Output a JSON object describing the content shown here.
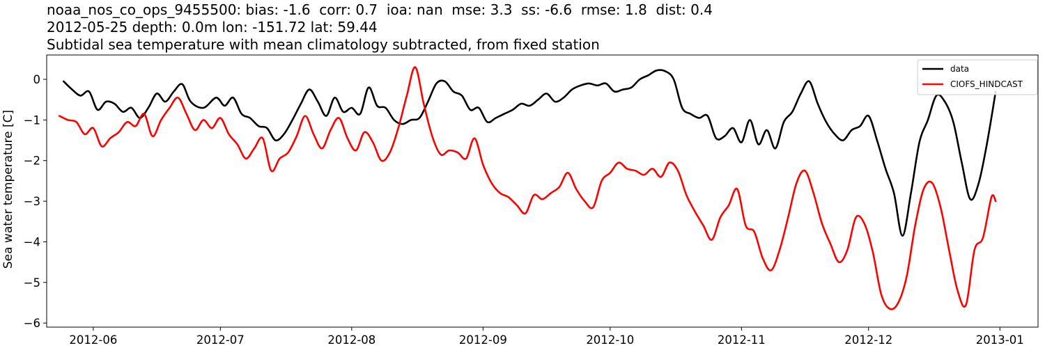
{
  "chart_data": {
    "type": "line",
    "title_lines": [
      "noaa_nos_co_ops_9455500: bias: -1.6  corr: 0.7  ioa: nan  mse: 3.3  ss: -6.6  rmse: 1.8  dist: 0.4",
      "2012-05-25 depth: 0.0m lon: -151.72 lat: 59.44",
      "Subtidal sea temperature with mean climatology subtracted, from fixed station"
    ],
    "ylabel": "Sea water temperature [C]",
    "xlabel": "",
    "xlim": [
      "2012-05-21",
      "2013-01-10"
    ],
    "ylim": [
      -6.1,
      0.6
    ],
    "x_ticks": [
      "2012-06-01",
      "2012-07-01",
      "2012-08-01",
      "2012-09-01",
      "2012-10-01",
      "2012-11-01",
      "2012-12-01",
      "2013-01-01"
    ],
    "x_tick_labels": [
      "2012-06",
      "2012-07",
      "2012-08",
      "2012-09",
      "2012-10",
      "2012-11",
      "2012-12",
      "2013-01"
    ],
    "y_ticks": [
      0,
      -1,
      -2,
      -3,
      -4,
      -5,
      -6
    ],
    "y_tick_labels": [
      "0",
      "−1",
      "−2",
      "−3",
      "−4",
      "−5",
      "−6"
    ],
    "grid": false,
    "legend_position": "top-right",
    "series": [
      {
        "name": "data",
        "color": "#000000",
        "points": [
          [
            "2012-05-25",
            -0.05
          ],
          [
            "2012-05-27",
            -0.25
          ],
          [
            "2012-05-29",
            -0.4
          ],
          [
            "2012-05-31",
            -0.3
          ],
          [
            "2012-06-02",
            -0.75
          ],
          [
            "2012-06-04",
            -0.55
          ],
          [
            "2012-06-06",
            -0.6
          ],
          [
            "2012-06-08",
            -0.8
          ],
          [
            "2012-06-10",
            -0.7
          ],
          [
            "2012-06-12",
            -0.95
          ],
          [
            "2012-06-14",
            -0.7
          ],
          [
            "2012-06-16",
            -0.35
          ],
          [
            "2012-06-18",
            -0.55
          ],
          [
            "2012-06-20",
            -0.3
          ],
          [
            "2012-06-22",
            -0.12
          ],
          [
            "2012-06-24",
            -0.55
          ],
          [
            "2012-06-27",
            -0.7
          ],
          [
            "2012-06-30",
            -0.45
          ],
          [
            "2012-07-02",
            -0.65
          ],
          [
            "2012-07-04",
            -0.45
          ],
          [
            "2012-07-06",
            -0.85
          ],
          [
            "2012-07-08",
            -0.95
          ],
          [
            "2012-07-10",
            -1.15
          ],
          [
            "2012-07-12",
            -1.2
          ],
          [
            "2012-07-14",
            -1.5
          ],
          [
            "2012-07-16",
            -1.35
          ],
          [
            "2012-07-18",
            -1.0
          ],
          [
            "2012-07-20",
            -0.6
          ],
          [
            "2012-07-22",
            -0.25
          ],
          [
            "2012-07-24",
            -0.55
          ],
          [
            "2012-07-26",
            -0.9
          ],
          [
            "2012-07-28",
            -0.45
          ],
          [
            "2012-07-30",
            -0.8
          ],
          [
            "2012-08-01",
            -0.7
          ],
          [
            "2012-08-03",
            -0.85
          ],
          [
            "2012-08-05",
            -0.2
          ],
          [
            "2012-08-07",
            -0.65
          ],
          [
            "2012-08-09",
            -0.7
          ],
          [
            "2012-08-11",
            -1.0
          ],
          [
            "2012-08-13",
            -1.1
          ],
          [
            "2012-08-15",
            -1.0
          ],
          [
            "2012-08-17",
            -0.95
          ],
          [
            "2012-08-19",
            -0.55
          ],
          [
            "2012-08-21",
            -0.1
          ],
          [
            "2012-08-23",
            -0.05
          ],
          [
            "2012-08-25",
            -0.3
          ],
          [
            "2012-08-27",
            -0.4
          ],
          [
            "2012-08-29",
            -0.75
          ],
          [
            "2012-08-31",
            -0.7
          ],
          [
            "2012-09-02",
            -1.05
          ],
          [
            "2012-09-04",
            -0.95
          ],
          [
            "2012-09-06",
            -0.85
          ],
          [
            "2012-09-08",
            -0.75
          ],
          [
            "2012-09-10",
            -0.6
          ],
          [
            "2012-09-12",
            -0.65
          ],
          [
            "2012-09-14",
            -0.5
          ],
          [
            "2012-09-16",
            -0.35
          ],
          [
            "2012-09-18",
            -0.55
          ],
          [
            "2012-09-20",
            -0.45
          ],
          [
            "2012-09-22",
            -0.25
          ],
          [
            "2012-09-24",
            -0.15
          ],
          [
            "2012-09-26",
            -0.1
          ],
          [
            "2012-09-28",
            -0.15
          ],
          [
            "2012-09-30",
            -0.1
          ],
          [
            "2012-10-02",
            -0.3
          ],
          [
            "2012-10-04",
            -0.25
          ],
          [
            "2012-10-06",
            -0.2
          ],
          [
            "2012-10-08",
            0.0
          ],
          [
            "2012-10-10",
            0.1
          ],
          [
            "2012-10-12",
            0.22
          ],
          [
            "2012-10-14",
            0.2
          ],
          [
            "2012-10-16",
            0.0
          ],
          [
            "2012-10-18",
            -0.7
          ],
          [
            "2012-10-20",
            -0.85
          ],
          [
            "2012-10-22",
            -0.95
          ],
          [
            "2012-10-24",
            -0.9
          ],
          [
            "2012-10-26",
            -1.45
          ],
          [
            "2012-10-28",
            -1.4
          ],
          [
            "2012-10-30",
            -1.2
          ],
          [
            "2012-11-01",
            -1.55
          ],
          [
            "2012-11-03",
            -1.0
          ],
          [
            "2012-11-05",
            -1.6
          ],
          [
            "2012-11-07",
            -1.25
          ],
          [
            "2012-11-09",
            -1.7
          ],
          [
            "2012-11-11",
            -1.05
          ],
          [
            "2012-11-13",
            -0.8
          ],
          [
            "2012-11-15",
            -0.35
          ],
          [
            "2012-11-17",
            -0.05
          ],
          [
            "2012-11-19",
            -0.6
          ],
          [
            "2012-11-21",
            -1.05
          ],
          [
            "2012-11-23",
            -1.35
          ],
          [
            "2012-11-25",
            -1.5
          ],
          [
            "2012-11-27",
            -1.25
          ],
          [
            "2012-11-29",
            -1.15
          ],
          [
            "2012-12-01",
            -0.9
          ],
          [
            "2012-12-03",
            -1.5
          ],
          [
            "2012-12-05",
            -2.2
          ],
          [
            "2012-12-07",
            -2.8
          ],
          [
            "2012-12-09",
            -3.85
          ],
          [
            "2012-12-11",
            -2.8
          ],
          [
            "2012-12-13",
            -1.55
          ],
          [
            "2012-12-15",
            -1.0
          ],
          [
            "2012-12-17",
            -0.4
          ],
          [
            "2012-12-19",
            -0.55
          ],
          [
            "2012-12-21",
            -1.05
          ],
          [
            "2012-12-23",
            -2.05
          ],
          [
            "2012-12-25",
            -2.95
          ],
          [
            "2012-12-27",
            -2.55
          ],
          [
            "2012-12-29",
            -1.55
          ],
          [
            "2012-12-31",
            -0.3
          ]
        ]
      },
      {
        "name": "CIOFS_HINDCAST",
        "color": "#ff0000",
        "points": [
          [
            "2012-05-24",
            -0.9
          ],
          [
            "2012-05-26",
            -1.0
          ],
          [
            "2012-05-28",
            -1.05
          ],
          [
            "2012-05-30",
            -1.35
          ],
          [
            "2012-06-01",
            -1.2
          ],
          [
            "2012-06-03",
            -1.65
          ],
          [
            "2012-06-05",
            -1.45
          ],
          [
            "2012-06-07",
            -1.3
          ],
          [
            "2012-06-09",
            -1.05
          ],
          [
            "2012-06-11",
            -1.15
          ],
          [
            "2012-06-13",
            -0.85
          ],
          [
            "2012-06-15",
            -1.4
          ],
          [
            "2012-06-17",
            -1.0
          ],
          [
            "2012-06-19",
            -0.7
          ],
          [
            "2012-06-21",
            -0.45
          ],
          [
            "2012-06-23",
            -0.85
          ],
          [
            "2012-06-25",
            -1.25
          ],
          [
            "2012-06-27",
            -1.0
          ],
          [
            "2012-06-29",
            -1.2
          ],
          [
            "2012-07-01",
            -0.95
          ],
          [
            "2012-07-03",
            -1.35
          ],
          [
            "2012-07-05",
            -1.6
          ],
          [
            "2012-07-07",
            -1.95
          ],
          [
            "2012-07-09",
            -1.7
          ],
          [
            "2012-07-11",
            -1.45
          ],
          [
            "2012-07-13",
            -2.25
          ],
          [
            "2012-07-15",
            -1.95
          ],
          [
            "2012-07-17",
            -1.8
          ],
          [
            "2012-07-19",
            -1.4
          ],
          [
            "2012-07-21",
            -0.9
          ],
          [
            "2012-07-23",
            -1.35
          ],
          [
            "2012-07-25",
            -1.7
          ],
          [
            "2012-07-27",
            -1.25
          ],
          [
            "2012-07-29",
            -0.95
          ],
          [
            "2012-07-31",
            -1.45
          ],
          [
            "2012-08-02",
            -1.75
          ],
          [
            "2012-08-04",
            -1.3
          ],
          [
            "2012-08-06",
            -1.55
          ],
          [
            "2012-08-08",
            -2.0
          ],
          [
            "2012-08-10",
            -1.8
          ],
          [
            "2012-08-12",
            -1.2
          ],
          [
            "2012-08-14",
            -0.4
          ],
          [
            "2012-08-16",
            0.3
          ],
          [
            "2012-08-18",
            -0.6
          ],
          [
            "2012-08-20",
            -1.4
          ],
          [
            "2012-08-22",
            -1.85
          ],
          [
            "2012-08-24",
            -1.75
          ],
          [
            "2012-08-26",
            -1.8
          ],
          [
            "2012-08-28",
            -1.95
          ],
          [
            "2012-08-30",
            -1.45
          ],
          [
            "2012-09-01",
            -2.1
          ],
          [
            "2012-09-03",
            -2.55
          ],
          [
            "2012-09-05",
            -2.8
          ],
          [
            "2012-09-07",
            -2.9
          ],
          [
            "2012-09-09",
            -3.1
          ],
          [
            "2012-09-11",
            -3.3
          ],
          [
            "2012-09-13",
            -2.85
          ],
          [
            "2012-09-15",
            -2.95
          ],
          [
            "2012-09-17",
            -2.8
          ],
          [
            "2012-09-19",
            -2.65
          ],
          [
            "2012-09-21",
            -2.3
          ],
          [
            "2012-09-23",
            -2.7
          ],
          [
            "2012-09-25",
            -3.0
          ],
          [
            "2012-09-27",
            -3.15
          ],
          [
            "2012-09-29",
            -2.5
          ],
          [
            "2012-10-01",
            -2.3
          ],
          [
            "2012-10-03",
            -2.05
          ],
          [
            "2012-10-05",
            -2.2
          ],
          [
            "2012-10-07",
            -2.25
          ],
          [
            "2012-10-09",
            -2.35
          ],
          [
            "2012-10-11",
            -2.2
          ],
          [
            "2012-10-13",
            -2.4
          ],
          [
            "2012-10-15",
            -2.05
          ],
          [
            "2012-10-17",
            -2.25
          ],
          [
            "2012-10-19",
            -2.85
          ],
          [
            "2012-10-21",
            -3.25
          ],
          [
            "2012-10-23",
            -3.6
          ],
          [
            "2012-10-25",
            -3.95
          ],
          [
            "2012-10-27",
            -3.4
          ],
          [
            "2012-10-29",
            -3.1
          ],
          [
            "2012-10-31",
            -2.7
          ],
          [
            "2012-11-02",
            -3.6
          ],
          [
            "2012-11-04",
            -3.75
          ],
          [
            "2012-11-06",
            -4.4
          ],
          [
            "2012-11-08",
            -4.7
          ],
          [
            "2012-11-10",
            -4.2
          ],
          [
            "2012-11-12",
            -3.4
          ],
          [
            "2012-11-14",
            -2.55
          ],
          [
            "2012-11-16",
            -2.25
          ],
          [
            "2012-11-18",
            -2.8
          ],
          [
            "2012-11-20",
            -3.55
          ],
          [
            "2012-11-22",
            -4.05
          ],
          [
            "2012-11-24",
            -4.5
          ],
          [
            "2012-11-26",
            -4.2
          ],
          [
            "2012-11-28",
            -3.4
          ],
          [
            "2012-11-30",
            -3.55
          ],
          [
            "2012-12-02",
            -4.25
          ],
          [
            "2012-12-04",
            -5.3
          ],
          [
            "2012-12-06",
            -5.65
          ],
          [
            "2012-12-08",
            -5.5
          ],
          [
            "2012-12-10",
            -4.85
          ],
          [
            "2012-12-12",
            -3.6
          ],
          [
            "2012-12-14",
            -2.7
          ],
          [
            "2012-12-16",
            -2.55
          ],
          [
            "2012-12-18",
            -3.15
          ],
          [
            "2012-12-20",
            -4.2
          ],
          [
            "2012-12-22",
            -5.2
          ],
          [
            "2012-12-24",
            -5.55
          ],
          [
            "2012-12-26",
            -4.2
          ],
          [
            "2012-12-28",
            -3.9
          ],
          [
            "2012-12-30",
            -2.9
          ],
          [
            "2012-12-31",
            -3.0
          ]
        ]
      }
    ]
  }
}
